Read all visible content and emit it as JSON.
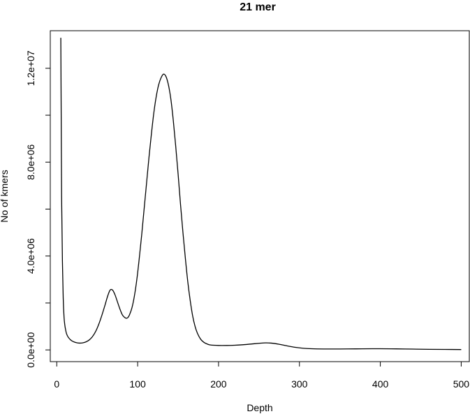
{
  "chart_data": {
    "type": "line",
    "title": "21 mer",
    "xlabel": "Depth",
    "ylabel": "No of kmers",
    "xlim": [
      -8,
      510
    ],
    "ylim": [
      -500000,
      13600000
    ],
    "x_ticks": [
      0,
      100,
      200,
      300,
      400,
      500
    ],
    "x_tick_labels": [
      "0",
      "100",
      "200",
      "300",
      "400",
      "500"
    ],
    "y_ticks": [
      0,
      2000000,
      4000000,
      6000000,
      8000000,
      10000000,
      12000000
    ],
    "y_tick_labels": [
      "0.0e+00",
      "",
      "4.0e+06",
      "",
      "8.0e+06",
      "",
      "1.2e+07"
    ],
    "grid": false,
    "series": [
      {
        "color": "#000000",
        "points": [
          [
            5,
            13300000
          ],
          [
            5.5,
            10000000
          ],
          [
            6,
            6500000
          ],
          [
            7,
            3800000
          ],
          [
            8,
            2200000
          ],
          [
            9,
            1400000
          ],
          [
            10,
            1050000
          ],
          [
            11,
            850000
          ],
          [
            12,
            700000
          ],
          [
            14,
            550000
          ],
          [
            17,
            430000
          ],
          [
            20,
            360000
          ],
          [
            24,
            310000
          ],
          [
            28,
            290000
          ],
          [
            32,
            300000
          ],
          [
            36,
            340000
          ],
          [
            40,
            420000
          ],
          [
            44,
            560000
          ],
          [
            48,
            780000
          ],
          [
            52,
            1100000
          ],
          [
            56,
            1500000
          ],
          [
            60,
            1950000
          ],
          [
            63,
            2300000
          ],
          [
            66,
            2550000
          ],
          [
            69,
            2550000
          ],
          [
            72,
            2350000
          ],
          [
            75,
            2050000
          ],
          [
            78,
            1750000
          ],
          [
            81,
            1500000
          ],
          [
            84,
            1380000
          ],
          [
            86,
            1350000
          ],
          [
            88,
            1380000
          ],
          [
            90,
            1500000
          ],
          [
            93,
            1800000
          ],
          [
            96,
            2300000
          ],
          [
            99,
            3000000
          ],
          [
            102,
            3900000
          ],
          [
            105,
            4900000
          ],
          [
            108,
            6000000
          ],
          [
            111,
            7100000
          ],
          [
            114,
            8200000
          ],
          [
            117,
            9200000
          ],
          [
            120,
            10100000
          ],
          [
            123,
            10800000
          ],
          [
            126,
            11300000
          ],
          [
            129,
            11600000
          ],
          [
            132,
            11750000
          ],
          [
            135,
            11650000
          ],
          [
            138,
            11300000
          ],
          [
            141,
            10700000
          ],
          [
            144,
            9800000
          ],
          [
            147,
            8700000
          ],
          [
            150,
            7500000
          ],
          [
            153,
            6200000
          ],
          [
            156,
            5000000
          ],
          [
            159,
            3900000
          ],
          [
            162,
            2900000
          ],
          [
            165,
            2100000
          ],
          [
            168,
            1450000
          ],
          [
            171,
            1000000
          ],
          [
            174,
            700000
          ],
          [
            178,
            450000
          ],
          [
            182,
            320000
          ],
          [
            186,
            250000
          ],
          [
            190,
            210000
          ],
          [
            200,
            190000
          ],
          [
            210,
            190000
          ],
          [
            220,
            200000
          ],
          [
            230,
            220000
          ],
          [
            240,
            250000
          ],
          [
            250,
            280000
          ],
          [
            258,
            300000
          ],
          [
            265,
            290000
          ],
          [
            275,
            240000
          ],
          [
            285,
            170000
          ],
          [
            295,
            110000
          ],
          [
            305,
            70000
          ],
          [
            315,
            50000
          ],
          [
            330,
            40000
          ],
          [
            350,
            40000
          ],
          [
            370,
            45000
          ],
          [
            390,
            50000
          ],
          [
            400,
            50000
          ],
          [
            420,
            45000
          ],
          [
            440,
            35000
          ],
          [
            460,
            25000
          ],
          [
            480,
            20000
          ],
          [
            500,
            15000
          ]
        ]
      }
    ]
  }
}
